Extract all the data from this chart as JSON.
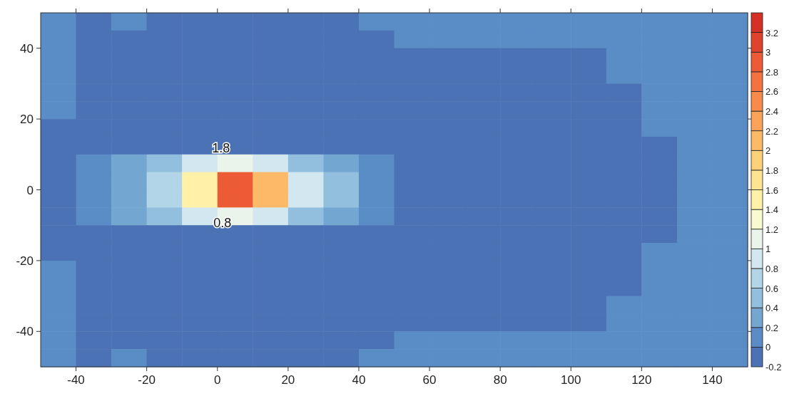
{
  "chart_data": {
    "type": "heatmap",
    "x": [
      -45,
      -35,
      -25,
      -15,
      -5,
      5,
      15,
      25,
      35,
      45,
      55,
      65,
      75,
      85,
      95,
      105,
      115,
      125,
      135,
      145
    ],
    "y": [
      47.5,
      42.5,
      37.5,
      32.5,
      27.5,
      22.5,
      17.5,
      12.5,
      7.5,
      2.5,
      -2.5,
      -7.5,
      -12.5,
      -17.5,
      -22.5,
      -27.5,
      -32.5,
      -37.5,
      -42.5,
      -47.5
    ],
    "xlim": [
      -50,
      150
    ],
    "xticks": [
      -40,
      -20,
      0,
      20,
      40,
      60,
      80,
      100,
      120,
      140
    ],
    "ylim": [
      -50,
      50
    ],
    "yticks": [
      -40,
      -20,
      0,
      20,
      40
    ],
    "clim": [
      -0.2,
      3.4
    ],
    "cticks": [
      -0.2,
      0,
      0.2,
      0.4,
      0.6,
      0.8,
      1,
      1.2,
      1.4,
      1.6,
      1.8,
      2,
      2.2,
      2.4,
      2.6,
      2.8,
      3,
      3.2
    ],
    "cells": [
      [
        0.1,
        -0.1,
        0.1,
        -0.1,
        -0.1,
        -0.1,
        -0.1,
        -0.1,
        -0.1,
        0.1,
        0.1,
        0.1,
        0.1,
        0.1,
        0.1,
        0.1,
        0.1,
        0.1,
        0.1,
        0.1
      ],
      [
        0.1,
        -0.1,
        -0.1,
        -0.1,
        -0.1,
        -0.1,
        -0.1,
        -0.1,
        -0.1,
        -0.1,
        0.1,
        0.1,
        0.1,
        0.1,
        0.1,
        0.1,
        0.1,
        0.1,
        0.1,
        0.1
      ],
      [
        0.1,
        -0.1,
        -0.1,
        -0.1,
        -0.1,
        -0.1,
        -0.1,
        -0.1,
        -0.1,
        -0.1,
        -0.1,
        -0.1,
        -0.1,
        -0.1,
        -0.1,
        -0.1,
        0.1,
        0.1,
        0.1,
        0.1
      ],
      [
        0.1,
        -0.1,
        -0.1,
        -0.1,
        -0.1,
        -0.1,
        -0.1,
        -0.1,
        -0.1,
        -0.1,
        -0.1,
        -0.1,
        -0.1,
        -0.1,
        -0.1,
        -0.1,
        0.1,
        0.1,
        0.1,
        0.1
      ],
      [
        0.1,
        -0.1,
        -0.1,
        -0.1,
        -0.1,
        -0.1,
        -0.1,
        -0.1,
        -0.1,
        -0.1,
        -0.1,
        -0.1,
        -0.1,
        -0.1,
        -0.1,
        -0.1,
        -0.1,
        0.1,
        0.1,
        0.1
      ],
      [
        0.1,
        -0.1,
        -0.1,
        -0.1,
        -0.1,
        -0.1,
        -0.1,
        -0.1,
        -0.1,
        -0.1,
        -0.1,
        -0.1,
        -0.1,
        -0.1,
        -0.1,
        -0.1,
        -0.1,
        0.1,
        0.1,
        0.1
      ],
      [
        -0.1,
        -0.1,
        -0.1,
        -0.1,
        -0.1,
        -0.1,
        -0.1,
        -0.1,
        -0.1,
        -0.1,
        -0.1,
        -0.1,
        -0.1,
        -0.1,
        -0.1,
        -0.1,
        -0.1,
        0.1,
        0.1,
        0.1
      ],
      [
        -0.1,
        -0.1,
        -0.1,
        -0.1,
        -0.1,
        -0.1,
        -0.1,
        -0.1,
        -0.1,
        -0.1,
        -0.1,
        -0.1,
        -0.1,
        -0.1,
        -0.1,
        -0.1,
        -0.1,
        -0.1,
        0.1,
        0.1
      ],
      [
        -0.1,
        0.1,
        0.2,
        0.4,
        0.8,
        1.0,
        0.9,
        0.5,
        0.2,
        0.1,
        -0.1,
        -0.1,
        -0.1,
        -0.1,
        -0.1,
        -0.1,
        -0.1,
        -0.1,
        0.1,
        0.1
      ],
      [
        -0.1,
        0.1,
        0.3,
        0.6,
        1.4,
        2.8,
        2.0,
        0.9,
        0.4,
        0.1,
        -0.1,
        -0.1,
        -0.1,
        -0.1,
        -0.1,
        -0.1,
        -0.1,
        -0.1,
        0.1,
        0.1
      ],
      [
        -0.1,
        0.1,
        0.3,
        0.6,
        1.4,
        2.8,
        2.0,
        0.9,
        0.4,
        0.1,
        -0.1,
        -0.1,
        -0.1,
        -0.1,
        -0.1,
        -0.1,
        -0.1,
        -0.1,
        0.1,
        0.1
      ],
      [
        -0.1,
        0.1,
        0.2,
        0.4,
        0.8,
        1.0,
        0.9,
        0.5,
        0.2,
        0.1,
        -0.1,
        -0.1,
        -0.1,
        -0.1,
        -0.1,
        -0.1,
        -0.1,
        -0.1,
        0.1,
        0.1
      ],
      [
        -0.1,
        -0.1,
        -0.1,
        -0.1,
        -0.1,
        -0.1,
        -0.1,
        -0.1,
        -0.1,
        -0.1,
        -0.1,
        -0.1,
        -0.1,
        -0.1,
        -0.1,
        -0.1,
        -0.1,
        -0.1,
        0.1,
        0.1
      ],
      [
        -0.1,
        -0.1,
        -0.1,
        -0.1,
        -0.1,
        -0.1,
        -0.1,
        -0.1,
        -0.1,
        -0.1,
        -0.1,
        -0.1,
        -0.1,
        -0.1,
        -0.1,
        -0.1,
        -0.1,
        0.1,
        0.1,
        0.1
      ],
      [
        0.1,
        -0.1,
        -0.1,
        -0.1,
        -0.1,
        -0.1,
        -0.1,
        -0.1,
        -0.1,
        -0.1,
        -0.1,
        -0.1,
        -0.1,
        -0.1,
        -0.1,
        -0.1,
        -0.1,
        0.1,
        0.1,
        0.1
      ],
      [
        0.1,
        -0.1,
        -0.1,
        -0.1,
        -0.1,
        -0.1,
        -0.1,
        -0.1,
        -0.1,
        -0.1,
        -0.1,
        -0.1,
        -0.1,
        -0.1,
        -0.1,
        -0.1,
        -0.1,
        0.1,
        0.1,
        0.1
      ],
      [
        0.1,
        -0.1,
        -0.1,
        -0.1,
        -0.1,
        -0.1,
        -0.1,
        -0.1,
        -0.1,
        -0.1,
        -0.1,
        -0.1,
        -0.1,
        -0.1,
        -0.1,
        -0.1,
        0.1,
        0.1,
        0.1,
        0.1
      ],
      [
        0.1,
        -0.1,
        -0.1,
        -0.1,
        -0.1,
        -0.1,
        -0.1,
        -0.1,
        -0.1,
        -0.1,
        -0.1,
        -0.1,
        -0.1,
        -0.1,
        -0.1,
        -0.1,
        0.1,
        0.1,
        0.1,
        0.1
      ],
      [
        0.1,
        -0.1,
        -0.1,
        -0.1,
        -0.1,
        -0.1,
        -0.1,
        -0.1,
        -0.1,
        -0.1,
        0.1,
        0.1,
        0.1,
        0.1,
        0.1,
        0.1,
        0.1,
        0.1,
        0.1,
        0.1
      ],
      [
        0.1,
        -0.1,
        0.1,
        -0.1,
        -0.1,
        -0.1,
        -0.1,
        -0.1,
        -0.1,
        0.1,
        0.1,
        0.1,
        0.1,
        0.1,
        0.1,
        0.1,
        0.1,
        0.1,
        0.1,
        0.1
      ]
    ],
    "annotations": [
      "1.8",
      "0.8"
    ]
  }
}
